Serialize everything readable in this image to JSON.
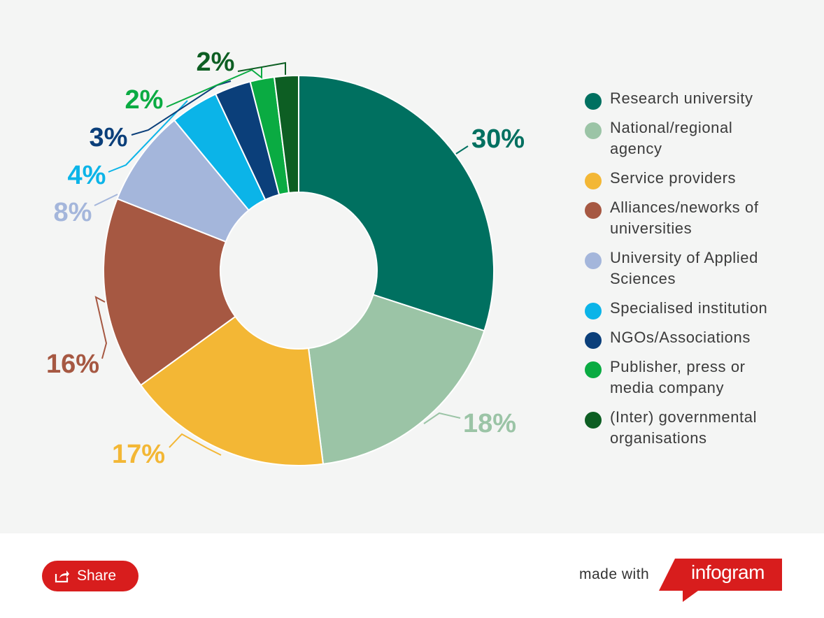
{
  "chart_data": {
    "type": "pie",
    "title": "",
    "slices": [
      {
        "label": "Research university",
        "value": 30,
        "value_label": "30%",
        "color": "#007060"
      },
      {
        "label": "National/regional agency",
        "value": 18,
        "value_label": "18%",
        "color": "#9bc4a6"
      },
      {
        "label": "Service providers",
        "value": 17,
        "value_label": "17%",
        "color": "#f3b735"
      },
      {
        "label": "Alliances/neworks of universities",
        "value": 16,
        "value_label": "16%",
        "color": "#a65842"
      },
      {
        "label": "University of Applied Sciences",
        "value": 8,
        "value_label": "8%",
        "color": "#a4b6db"
      },
      {
        "label": "Specialised institution",
        "value": 4,
        "value_label": "4%",
        "color": "#0bb4e8"
      },
      {
        "label": "NGOs/Associations",
        "value": 3,
        "value_label": "3%",
        "color": "#0b3f7a"
      },
      {
        "label": "Publisher, press or media company",
        "value": 2,
        "value_label": "2%",
        "color": "#0aab42"
      },
      {
        "label": "(Inter) governmental organisations",
        "value": 2,
        "value_label": "2%",
        "color": "#0d5e23"
      }
    ],
    "legend_position": "right"
  },
  "legend": {
    "items": [
      {
        "line1": "Research university",
        "line2": ""
      },
      {
        "line1": "National/regional",
        "line2": "agency"
      },
      {
        "line1": "Service providers",
        "line2": ""
      },
      {
        "line1": "Alliances/neworks of",
        "line2": "universities"
      },
      {
        "line1": "University of Applied",
        "line2": "Sciences"
      },
      {
        "line1": "Specialised institution",
        "line2": ""
      },
      {
        "line1": "NGOs/Associations",
        "line2": ""
      },
      {
        "line1": "Publisher, press or",
        "line2": "media company"
      },
      {
        "line1": "(Inter) governmental",
        "line2": "organisations"
      }
    ]
  },
  "footer": {
    "share_label": "Share",
    "made_with": "made with",
    "brand": "infogram",
    "brand_color": "#d81d1d"
  }
}
